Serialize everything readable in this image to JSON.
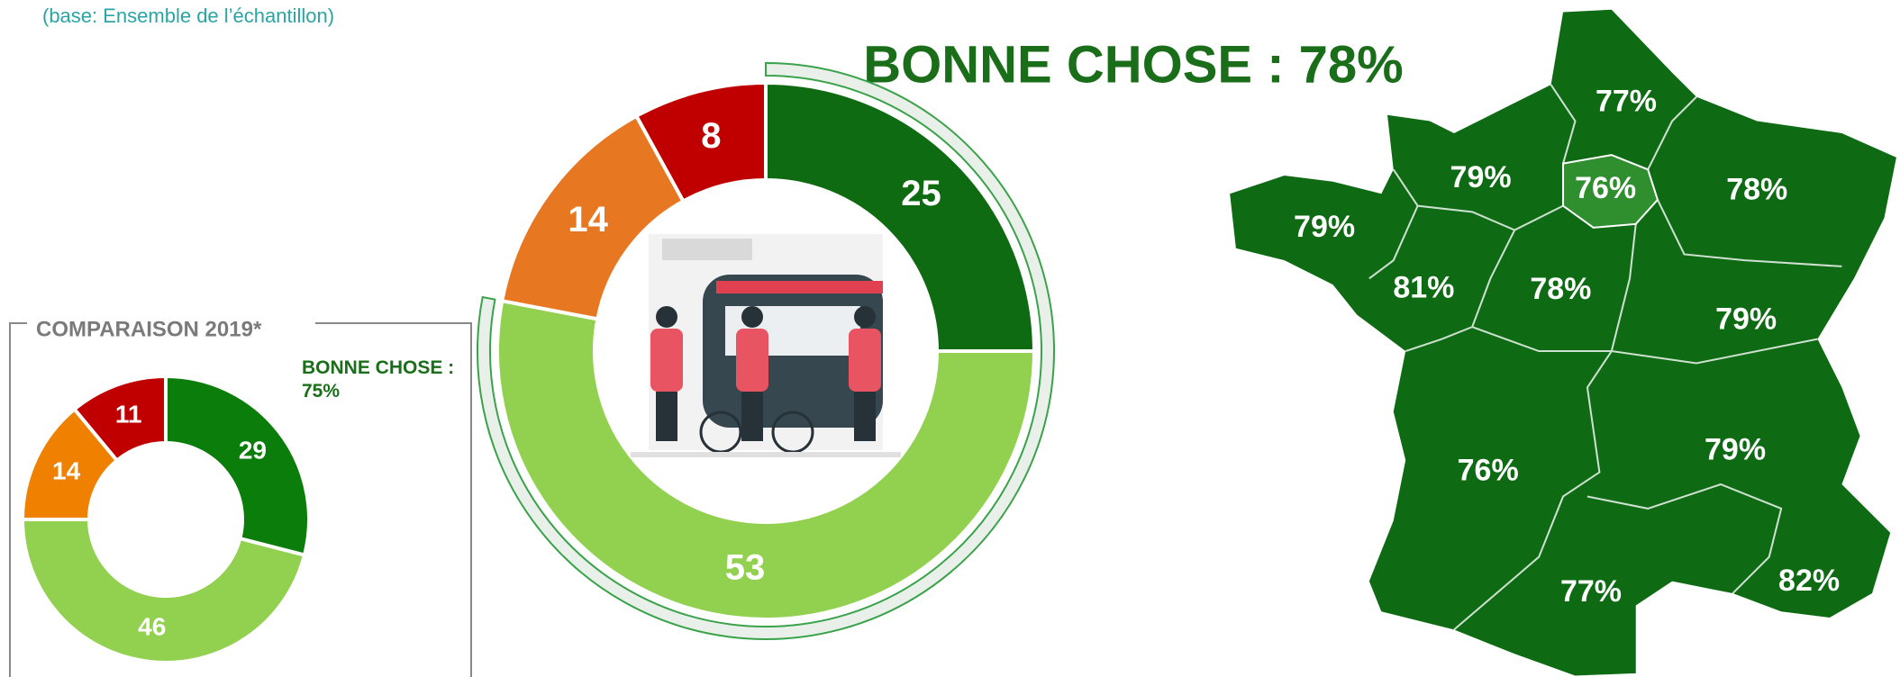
{
  "subtitle": "(base: Ensemble de l’échantillon)",
  "chart_data": [
    {
      "type": "donut",
      "title": "BONNE CHOSE : 78%",
      "values": [
        25,
        53,
        14,
        8
      ],
      "colors": [
        "#0f6b12",
        "#92d050",
        "#e87722",
        "#c00000"
      ]
    },
    {
      "type": "donut",
      "title": "COMPARAISON 2019*",
      "annotation": "BONNE CHOSE : 75%",
      "values": [
        29,
        46,
        14,
        11
      ],
      "colors": [
        "#0a7d0a",
        "#92d050",
        "#f08000",
        "#c00000"
      ]
    }
  ],
  "map": {
    "labels": [
      "77%",
      "79%",
      "76%",
      "78%",
      "79%",
      "81%",
      "78%",
      "79%",
      "76%",
      "79%",
      "77%",
      "82%"
    ]
  }
}
